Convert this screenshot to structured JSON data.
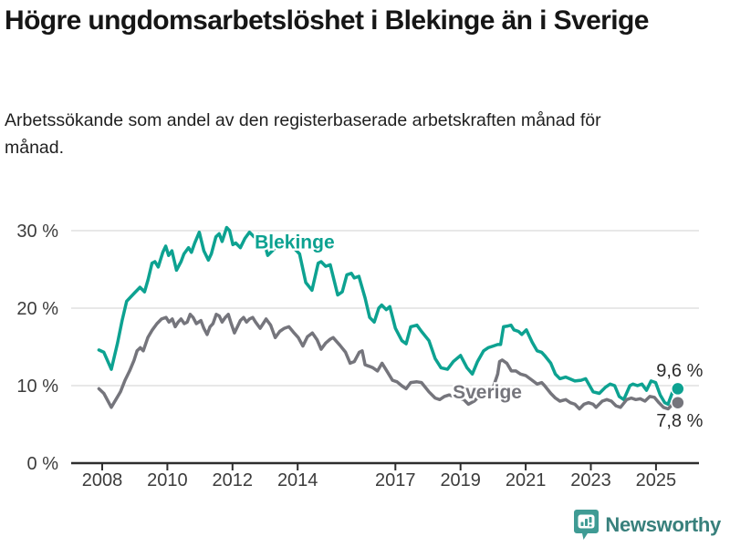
{
  "page": {
    "title": "Högre ungdomsarbetslöshet i Blekinge än i Sverige",
    "subtitle": "Arbetssökande som andel av den registerbaserade arbetskraften månad för månad."
  },
  "footer": {
    "brand_name": "Newsworthy",
    "logo_icon": "bar-chart-pin-badge-icon"
  },
  "colors": {
    "blekinge": "#0da291",
    "sverige": "#75757c",
    "grid": "#e1e1e1",
    "axis": "#2e2e2e",
    "tick_text": "#3c3c3c",
    "value_text": "#2b2b2b",
    "brand_badge": "#3f9b94",
    "brand_text": "#38807c"
  },
  "chart_data": {
    "type": "line",
    "x_unit": "year (monthly series)",
    "ylim": [
      0,
      33
    ],
    "xlim": [
      2007.9,
      2026.2
    ],
    "grid": "horizontal",
    "legend_position": "inline-labels",
    "yticks": [
      {
        "v": 0,
        "label": "0 %"
      },
      {
        "v": 10,
        "label": "10 %"
      },
      {
        "v": 20,
        "label": "20 %"
      },
      {
        "v": 30,
        "label": "30 %"
      }
    ],
    "xticks": [
      {
        "v": 2008,
        "label": "2008"
      },
      {
        "v": 2010,
        "label": "2010"
      },
      {
        "v": 2012,
        "label": "2012"
      },
      {
        "v": 2014,
        "label": "2014"
      },
      {
        "v": 2017,
        "label": "2017"
      },
      {
        "v": 2019,
        "label": "2019"
      },
      {
        "v": 2021,
        "label": "2021"
      },
      {
        "v": 2023,
        "label": "2023"
      },
      {
        "v": 2025,
        "label": "2025"
      }
    ],
    "series": [
      {
        "name": "Blekinge",
        "color": "#0da291",
        "end_label": "9,6 %",
        "end_label_side": "above",
        "label_anchor": [
          2012.68,
          27.7
        ],
        "points": [
          [
            2007.9,
            14.6
          ],
          [
            2008.05,
            14.3
          ],
          [
            2008.28,
            12.1
          ],
          [
            2008.47,
            15.5
          ],
          [
            2008.61,
            18.4
          ],
          [
            2008.75,
            20.9
          ],
          [
            2009.0,
            22.0
          ],
          [
            2009.16,
            22.7
          ],
          [
            2009.3,
            22.1
          ],
          [
            2009.41,
            23.7
          ],
          [
            2009.53,
            25.8
          ],
          [
            2009.62,
            26.0
          ],
          [
            2009.72,
            25.3
          ],
          [
            2009.86,
            27.2
          ],
          [
            2009.95,
            28.0
          ],
          [
            2010.04,
            26.8
          ],
          [
            2010.14,
            27.4
          ],
          [
            2010.28,
            24.9
          ],
          [
            2010.42,
            26.0
          ],
          [
            2010.51,
            27.0
          ],
          [
            2010.65,
            27.8
          ],
          [
            2010.74,
            27.2
          ],
          [
            2010.84,
            28.4
          ],
          [
            2010.98,
            29.8
          ],
          [
            2011.12,
            27.4
          ],
          [
            2011.26,
            26.2
          ],
          [
            2011.35,
            27.0
          ],
          [
            2011.49,
            29.2
          ],
          [
            2011.59,
            29.6
          ],
          [
            2011.68,
            28.6
          ],
          [
            2011.82,
            30.4
          ],
          [
            2011.91,
            30.0
          ],
          [
            2012.01,
            28.2
          ],
          [
            2012.1,
            28.4
          ],
          [
            2012.24,
            27.8
          ],
          [
            2012.38,
            29.0
          ],
          [
            2012.52,
            29.8
          ],
          [
            2012.66,
            29.2
          ],
          [
            2012.8,
            29.5
          ],
          [
            2012.94,
            29.0
          ],
          [
            2013.08,
            26.8
          ],
          [
            2013.22,
            27.4
          ],
          [
            2013.36,
            28.0
          ],
          [
            2013.5,
            28.3
          ],
          [
            2013.64,
            28.6
          ],
          [
            2013.78,
            28.0
          ],
          [
            2013.92,
            27.6
          ],
          [
            2014.06,
            27.0
          ],
          [
            2014.25,
            23.3
          ],
          [
            2014.44,
            22.3
          ],
          [
            2014.63,
            25.8
          ],
          [
            2014.72,
            26.0
          ],
          [
            2014.86,
            25.4
          ],
          [
            2015.0,
            25.6
          ],
          [
            2015.23,
            21.7
          ],
          [
            2015.37,
            22.1
          ],
          [
            2015.51,
            24.3
          ],
          [
            2015.65,
            24.5
          ],
          [
            2015.74,
            23.9
          ],
          [
            2015.88,
            24.1
          ],
          [
            2016.07,
            21.3
          ],
          [
            2016.21,
            18.8
          ],
          [
            2016.35,
            18.2
          ],
          [
            2016.49,
            20.0
          ],
          [
            2016.58,
            20.4
          ],
          [
            2016.72,
            19.8
          ],
          [
            2016.83,
            20.2
          ],
          [
            2017.0,
            17.4
          ],
          [
            2017.2,
            15.8
          ],
          [
            2017.33,
            15.4
          ],
          [
            2017.47,
            17.6
          ],
          [
            2017.66,
            17.8
          ],
          [
            2017.8,
            17.0
          ],
          [
            2018.03,
            15.8
          ],
          [
            2018.22,
            13.5
          ],
          [
            2018.4,
            12.3
          ],
          [
            2018.6,
            12.1
          ],
          [
            2018.78,
            13.1
          ],
          [
            2019.0,
            13.9
          ],
          [
            2019.2,
            12.3
          ],
          [
            2019.36,
            11.5
          ],
          [
            2019.52,
            13.1
          ],
          [
            2019.71,
            14.5
          ],
          [
            2019.85,
            14.9
          ],
          [
            2020.0,
            15.1
          ],
          [
            2020.14,
            15.3
          ],
          [
            2020.23,
            15.3
          ],
          [
            2020.32,
            17.6
          ],
          [
            2020.45,
            17.7
          ],
          [
            2020.55,
            17.8
          ],
          [
            2020.64,
            17.2
          ],
          [
            2020.78,
            17.0
          ],
          [
            2020.88,
            16.6
          ],
          [
            2021.02,
            17.2
          ],
          [
            2021.2,
            15.6
          ],
          [
            2021.35,
            14.5
          ],
          [
            2021.49,
            14.3
          ],
          [
            2021.58,
            13.9
          ],
          [
            2021.77,
            12.9
          ],
          [
            2021.91,
            11.5
          ],
          [
            2022.05,
            10.9
          ],
          [
            2022.23,
            11.1
          ],
          [
            2022.51,
            10.6
          ],
          [
            2022.7,
            10.7
          ],
          [
            2022.84,
            10.9
          ],
          [
            2023.07,
            9.2
          ],
          [
            2023.26,
            9.0
          ],
          [
            2023.45,
            9.8
          ],
          [
            2023.59,
            10.2
          ],
          [
            2023.73,
            10.0
          ],
          [
            2023.87,
            8.6
          ],
          [
            2024.01,
            8.2
          ],
          [
            2024.2,
            10.0
          ],
          [
            2024.29,
            10.2
          ],
          [
            2024.43,
            10.0
          ],
          [
            2024.57,
            10.2
          ],
          [
            2024.71,
            9.4
          ],
          [
            2024.85,
            10.6
          ],
          [
            2024.99,
            10.4
          ],
          [
            2025.13,
            8.8
          ],
          [
            2025.27,
            7.8
          ],
          [
            2025.37,
            7.6
          ],
          [
            2025.51,
            9.2
          ],
          [
            2025.67,
            9.6
          ]
        ]
      },
      {
        "name": "Sverige",
        "color": "#75757c",
        "end_label": "7,8 %",
        "end_label_side": "below",
        "label_anchor": [
          2018.76,
          8.35
        ],
        "points": [
          [
            2007.9,
            9.6
          ],
          [
            2008.05,
            9.0
          ],
          [
            2008.28,
            7.2
          ],
          [
            2008.56,
            9.2
          ],
          [
            2008.7,
            10.7
          ],
          [
            2008.84,
            11.9
          ],
          [
            2008.98,
            13.3
          ],
          [
            2009.07,
            14.5
          ],
          [
            2009.17,
            14.9
          ],
          [
            2009.26,
            14.5
          ],
          [
            2009.4,
            16.2
          ],
          [
            2009.54,
            17.2
          ],
          [
            2009.68,
            18.0
          ],
          [
            2009.82,
            18.6
          ],
          [
            2009.96,
            18.8
          ],
          [
            2010.05,
            18.2
          ],
          [
            2010.15,
            18.6
          ],
          [
            2010.24,
            17.6
          ],
          [
            2010.33,
            18.2
          ],
          [
            2010.42,
            18.6
          ],
          [
            2010.52,
            18.0
          ],
          [
            2010.61,
            18.2
          ],
          [
            2010.7,
            19.2
          ],
          [
            2010.79,
            18.8
          ],
          [
            2010.89,
            18.0
          ],
          [
            2011.03,
            18.4
          ],
          [
            2011.12,
            17.4
          ],
          [
            2011.22,
            16.6
          ],
          [
            2011.31,
            17.6
          ],
          [
            2011.4,
            18.0
          ],
          [
            2011.5,
            19.2
          ],
          [
            2011.59,
            19.0
          ],
          [
            2011.68,
            18.2
          ],
          [
            2011.78,
            18.8
          ],
          [
            2011.87,
            19.2
          ],
          [
            2011.96,
            18.0
          ],
          [
            2012.06,
            16.8
          ],
          [
            2012.15,
            17.6
          ],
          [
            2012.24,
            18.4
          ],
          [
            2012.34,
            18.8
          ],
          [
            2012.43,
            18.2
          ],
          [
            2012.52,
            18.6
          ],
          [
            2012.62,
            18.8
          ],
          [
            2012.71,
            18.2
          ],
          [
            2012.85,
            17.4
          ],
          [
            2012.94,
            18.0
          ],
          [
            2013.03,
            18.6
          ],
          [
            2013.17,
            17.8
          ],
          [
            2013.31,
            16.2
          ],
          [
            2013.45,
            17.0
          ],
          [
            2013.59,
            17.4
          ],
          [
            2013.73,
            17.6
          ],
          [
            2013.87,
            16.9
          ],
          [
            2014.02,
            16.2
          ],
          [
            2014.16,
            15.1
          ],
          [
            2014.3,
            16.3
          ],
          [
            2014.45,
            16.8
          ],
          [
            2014.6,
            15.9
          ],
          [
            2014.72,
            14.7
          ],
          [
            2014.86,
            15.5
          ],
          [
            2015.0,
            16.0
          ],
          [
            2015.09,
            16.2
          ],
          [
            2015.3,
            15.2
          ],
          [
            2015.47,
            14.3
          ],
          [
            2015.61,
            12.9
          ],
          [
            2015.74,
            13.1
          ],
          [
            2015.89,
            14.3
          ],
          [
            2015.98,
            14.5
          ],
          [
            2016.07,
            12.7
          ],
          [
            2016.2,
            12.5
          ],
          [
            2016.31,
            12.3
          ],
          [
            2016.45,
            11.9
          ],
          [
            2016.59,
            12.9
          ],
          [
            2016.75,
            11.8
          ],
          [
            2016.91,
            10.7
          ],
          [
            2017.05,
            10.5
          ],
          [
            2017.19,
            10.0
          ],
          [
            2017.33,
            9.6
          ],
          [
            2017.47,
            10.4
          ],
          [
            2017.66,
            10.5
          ],
          [
            2017.8,
            10.4
          ],
          [
            2018.03,
            9.2
          ],
          [
            2018.22,
            8.4
          ],
          [
            2018.36,
            8.2
          ],
          [
            2018.5,
            8.6
          ],
          [
            2018.65,
            8.8
          ],
          [
            2018.8,
            8.6
          ],
          [
            2018.95,
            8.4
          ],
          [
            2019.1,
            8.2
          ],
          [
            2019.24,
            7.6
          ],
          [
            2019.42,
            8.0
          ],
          [
            2019.56,
            8.6
          ],
          [
            2019.7,
            9.0
          ],
          [
            2019.85,
            9.2
          ],
          [
            2019.99,
            9.6
          ],
          [
            2020.14,
            11.5
          ],
          [
            2020.2,
            13.1
          ],
          [
            2020.28,
            13.3
          ],
          [
            2020.42,
            12.9
          ],
          [
            2020.56,
            11.9
          ],
          [
            2020.7,
            11.9
          ],
          [
            2020.84,
            11.5
          ],
          [
            2021.0,
            11.3
          ],
          [
            2021.2,
            10.7
          ],
          [
            2021.35,
            10.2
          ],
          [
            2021.49,
            10.4
          ],
          [
            2021.58,
            10.0
          ],
          [
            2021.77,
            9.0
          ],
          [
            2021.91,
            8.4
          ],
          [
            2022.05,
            8.0
          ],
          [
            2022.23,
            8.2
          ],
          [
            2022.37,
            7.8
          ],
          [
            2022.51,
            7.6
          ],
          [
            2022.65,
            7.0
          ],
          [
            2022.79,
            7.6
          ],
          [
            2022.93,
            7.8
          ],
          [
            2023.07,
            7.6
          ],
          [
            2023.16,
            7.2
          ],
          [
            2023.35,
            8.0
          ],
          [
            2023.49,
            8.2
          ],
          [
            2023.63,
            8.0
          ],
          [
            2023.77,
            7.4
          ],
          [
            2023.91,
            7.2
          ],
          [
            2024.1,
            8.2
          ],
          [
            2024.24,
            8.4
          ],
          [
            2024.38,
            8.2
          ],
          [
            2024.52,
            8.3
          ],
          [
            2024.66,
            8.0
          ],
          [
            2024.81,
            8.6
          ],
          [
            2024.95,
            8.5
          ],
          [
            2025.09,
            7.8
          ],
          [
            2025.23,
            7.2
          ],
          [
            2025.37,
            7.0
          ],
          [
            2025.51,
            7.6
          ],
          [
            2025.67,
            7.8
          ]
        ]
      }
    ]
  }
}
